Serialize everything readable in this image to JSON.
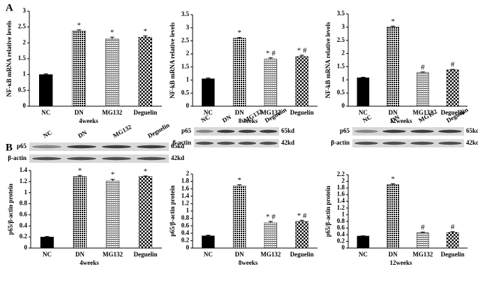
{
  "panel_labels": [
    "A",
    "B"
  ],
  "blots": [
    {
      "lanes": [
        "NC",
        "DN",
        "MG132",
        "Deguelin"
      ],
      "rows": [
        {
          "protein": "p65",
          "size": "65kd"
        },
        {
          "protein": "β-actin",
          "size": "42kd"
        }
      ]
    },
    {
      "lanes": [
        "NC",
        "DN",
        "MG132",
        "Deguelin"
      ],
      "rows": [
        {
          "protein": "p65",
          "size": "65kd"
        },
        {
          "protein": "β-actin",
          "size": "42kd"
        }
      ]
    },
    {
      "lanes": [
        "NC",
        "DN",
        "MG132",
        "Deguelin"
      ],
      "rows": [
        {
          "protein": "p65",
          "size": "65kd"
        },
        {
          "protein": "β-actin",
          "size": "42kd"
        }
      ]
    }
  ],
  "chart_data": [
    {
      "type": "bar",
      "ylabel": "NF-κB mRNA relative levels",
      "xlabel": "4weeks",
      "categories": [
        "NC",
        "DN",
        "MG132",
        "Deguelin"
      ],
      "values": [
        1,
        2.38,
        2.12,
        2.18
      ],
      "errors": [
        0.02,
        0.03,
        0.06,
        0.04
      ],
      "annotations": [
        null,
        "*",
        "*",
        "*"
      ],
      "ylim": [
        0,
        3
      ],
      "yticks": [
        0,
        0.5,
        1,
        1.5,
        2,
        2.5,
        3
      ]
    },
    {
      "type": "bar",
      "ylabel": "NF-kB mRNA relative levels",
      "xlabel": "8weeks",
      "categories": [
        "NC",
        "DN",
        "MG132",
        "Deguelin"
      ],
      "values": [
        1.05,
        2.6,
        1.8,
        1.9
      ],
      "errors": [
        0.03,
        0.03,
        0.05,
        0.05
      ],
      "annotations": [
        null,
        "*",
        "* #",
        "* #"
      ],
      "ylim": [
        0,
        3.5
      ],
      "yticks": [
        0,
        0.5,
        1,
        1.5,
        2,
        2.5,
        3,
        3.5
      ]
    },
    {
      "type": "bar",
      "ylabel": "NF-kB mRNA relative levels",
      "xlabel": "12weeks",
      "categories": [
        "NC",
        "DN",
        "MG132",
        "Deguelin"
      ],
      "values": [
        1.08,
        3.0,
        1.28,
        1.38
      ],
      "errors": [
        0.02,
        0.04,
        0.02,
        0.02
      ],
      "annotations": [
        null,
        "*",
        "#",
        "#"
      ],
      "ylim": [
        0,
        3.5
      ],
      "yticks": [
        0,
        0.5,
        1,
        1.5,
        2,
        2.5,
        3,
        3.5
      ]
    },
    {
      "type": "bar",
      "ylabel": "p65/β-actin protein",
      "xlabel": "4weeks",
      "categories": [
        "NC",
        "DN",
        "MG132",
        "Deguelin"
      ],
      "values": [
        0.2,
        1.29,
        1.21,
        1.29
      ],
      "errors": [
        0.01,
        0.02,
        0.03,
        0.01
      ],
      "annotations": [
        null,
        "*",
        "*",
        "*"
      ],
      "ylim": [
        0,
        1.4
      ],
      "yticks": [
        0,
        0.2,
        0.4,
        0.6,
        0.8,
        1,
        1.2,
        1.4
      ]
    },
    {
      "type": "bar",
      "ylabel": "p65/β-actin protein",
      "xlabel": "8weeks",
      "categories": [
        "NC",
        "DN",
        "MG132",
        "Deguelin"
      ],
      "values": [
        0.33,
        1.68,
        0.68,
        0.72
      ],
      "errors": [
        0.02,
        0.03,
        0.04,
        0.03
      ],
      "annotations": [
        null,
        "*",
        "* #",
        "* #"
      ],
      "ylim": [
        0,
        2
      ],
      "yticks": [
        0,
        0.2,
        0.4,
        0.6,
        0.8,
        1,
        1.2,
        1.4,
        1.6,
        1.8,
        2
      ]
    },
    {
      "type": "bar",
      "ylabel": "p65/β-actin protein",
      "xlabel": "12weeks",
      "categories": [
        "NC",
        "DN",
        "MG132",
        "Deguelin"
      ],
      "values": [
        0.36,
        1.9,
        0.46,
        0.47
      ],
      "errors": [
        0.01,
        0.03,
        0.02,
        0.02
      ],
      "annotations": [
        null,
        "*",
        "#",
        "#"
      ],
      "ylim": [
        0,
        2.2
      ],
      "yticks": [
        0,
        0.2,
        0.4,
        0.6,
        0.8,
        1,
        1.2,
        1.4,
        1.6,
        1.8,
        2,
        2.2
      ]
    }
  ]
}
